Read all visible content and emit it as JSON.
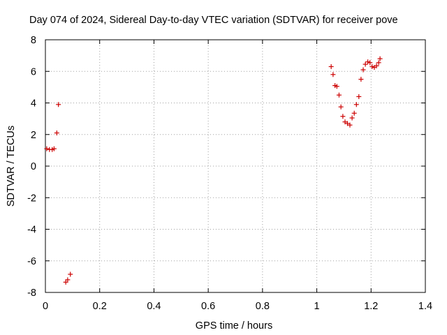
{
  "chart_data": {
    "type": "scatter",
    "title": "Day 074 of 2024, Sidereal Day-to-day VTEC variation (SDTVAR) for receiver pove",
    "xlabel": "GPS time / hours",
    "ylabel": "SDTVAR / TECUs",
    "xlim": [
      0,
      1.4
    ],
    "ylim": [
      -8,
      8
    ],
    "x_ticks": [
      "0",
      "0.2",
      "0.4",
      "0.6",
      "0.8",
      "1",
      "1.2",
      "1.4"
    ],
    "y_ticks": [
      "8",
      "6",
      "4",
      "2",
      "0",
      "-2",
      "-4",
      "-6",
      "-8"
    ],
    "grid": true,
    "marker": "+",
    "color": "#cc0000",
    "series": [
      {
        "name": "SDTVAR",
        "points": [
          [
            0.005,
            1.1
          ],
          [
            0.015,
            1.05
          ],
          [
            0.025,
            1.05
          ],
          [
            0.032,
            1.1
          ],
          [
            0.042,
            2.1
          ],
          [
            0.048,
            3.9
          ],
          [
            0.075,
            -7.35
          ],
          [
            0.082,
            -7.2
          ],
          [
            0.092,
            -6.85
          ],
          [
            1.053,
            6.3
          ],
          [
            1.06,
            5.8
          ],
          [
            1.067,
            5.1
          ],
          [
            1.074,
            5.05
          ],
          [
            1.082,
            4.5
          ],
          [
            1.089,
            3.75
          ],
          [
            1.096,
            3.15
          ],
          [
            1.104,
            2.8
          ],
          [
            1.113,
            2.7
          ],
          [
            1.122,
            2.6
          ],
          [
            1.13,
            3.05
          ],
          [
            1.138,
            3.35
          ],
          [
            1.146,
            3.9
          ],
          [
            1.155,
            4.4
          ],
          [
            1.163,
            5.5
          ],
          [
            1.171,
            6.1
          ],
          [
            1.179,
            6.45
          ],
          [
            1.188,
            6.6
          ],
          [
            1.196,
            6.55
          ],
          [
            1.204,
            6.3
          ],
          [
            1.212,
            6.25
          ],
          [
            1.22,
            6.35
          ],
          [
            1.228,
            6.55
          ],
          [
            1.233,
            6.8
          ]
        ]
      }
    ]
  }
}
